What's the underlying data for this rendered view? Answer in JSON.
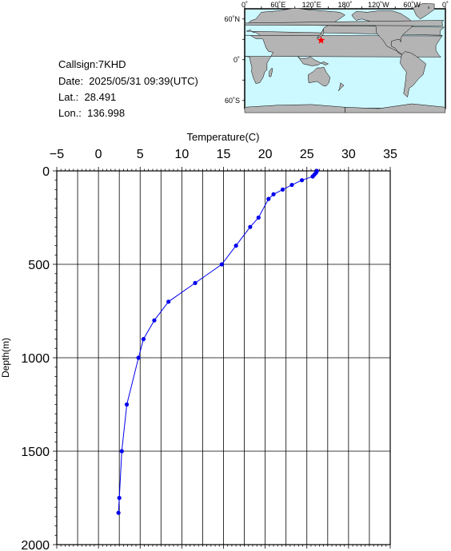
{
  "station": {
    "callsign": "Callsign:7KHD",
    "date": "Date:  2025/05/31 09:39(UTC)",
    "lat": "Lat.:  28.491",
    "lon": "Lon.:  136.998"
  },
  "map": {
    "top_labels": [
      "0˚",
      "60˚E",
      "120˚E",
      "180˚",
      "120˚W",
      "60˚W",
      "0˚"
    ],
    "left_labels": [
      "60˚N",
      "0˚",
      "60˚S"
    ],
    "marker_lat": 28.491,
    "marker_lon": 136.998,
    "ocean_color": "#ccf8ff",
    "land_color": "#b4b4b4",
    "marker_color": "#ff0000"
  },
  "chart_data": {
    "type": "line",
    "xlabel": "Temperature(C)",
    "ylabel": "Depth(m)",
    "xlim": [
      -5,
      35
    ],
    "ylim": [
      2000,
      0
    ],
    "x_ticks": [
      -5,
      0,
      5,
      10,
      15,
      20,
      25,
      30,
      35
    ],
    "y_ticks": [
      0,
      500,
      1000,
      1500,
      2000
    ],
    "x_tick_labels": [
      "−5",
      "0",
      "5",
      "10",
      "15",
      "20",
      "25",
      "30",
      "35"
    ],
    "y_tick_labels": [
      "0",
      "500",
      "1000",
      "1500",
      "2000"
    ],
    "grid": true,
    "color": "#0000ee",
    "series": [
      {
        "temperature": [
          26.2,
          26.1,
          25.9,
          25.7,
          24.4,
          23.2,
          22.1,
          21.0,
          20.4,
          19.2,
          18.2,
          16.5,
          14.8,
          11.6,
          8.4,
          6.7,
          5.4,
          4.8,
          3.4,
          2.8,
          2.5,
          2.4
        ],
        "depth": [
          0,
          10,
          20,
          30,
          50,
          75,
          100,
          125,
          150,
          250,
          300,
          400,
          500,
          600,
          700,
          800,
          900,
          1000,
          1250,
          1500,
          1750,
          1830
        ]
      }
    ]
  }
}
